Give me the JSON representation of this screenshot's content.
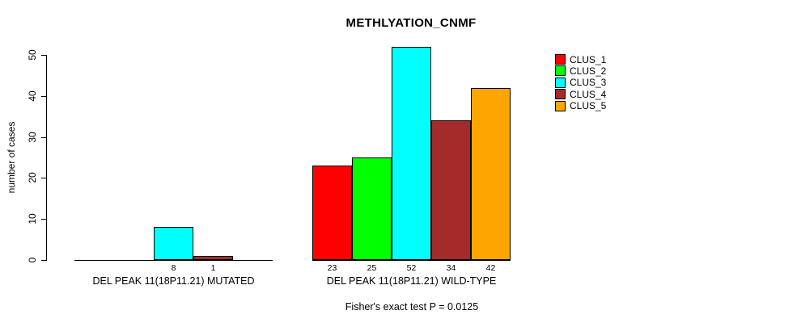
{
  "chart_data": {
    "type": "bar",
    "title": "METHLYATION_CNMF",
    "ylabel": "number of cases",
    "ylim": [
      0,
      52
    ],
    "yticks": [
      0,
      10,
      20,
      30,
      40,
      50
    ],
    "grid": false,
    "legend_position": "top-right",
    "series": [
      {
        "name": "CLUS_1",
        "color": "#FF0000"
      },
      {
        "name": "CLUS_2",
        "color": "#00FF00"
      },
      {
        "name": "CLUS_3",
        "color": "#00FFFF"
      },
      {
        "name": "CLUS_4",
        "color": "#A52A2A"
      },
      {
        "name": "CLUS_5",
        "color": "#FFA500"
      }
    ],
    "groups": [
      {
        "label": "DEL PEAK 11(18P11.21) MUTATED",
        "values": [
          0,
          0,
          8,
          1,
          0
        ],
        "bar_labels": [
          "",
          "",
          "8",
          "1",
          ""
        ]
      },
      {
        "label": "DEL PEAK 11(18P11.21) WILD-TYPE",
        "values": [
          23,
          25,
          52,
          34,
          42
        ],
        "bar_labels": [
          "23",
          "25",
          "52",
          "34",
          "42"
        ]
      }
    ],
    "annotation": "Fisher's exact test P = 0.0125"
  }
}
